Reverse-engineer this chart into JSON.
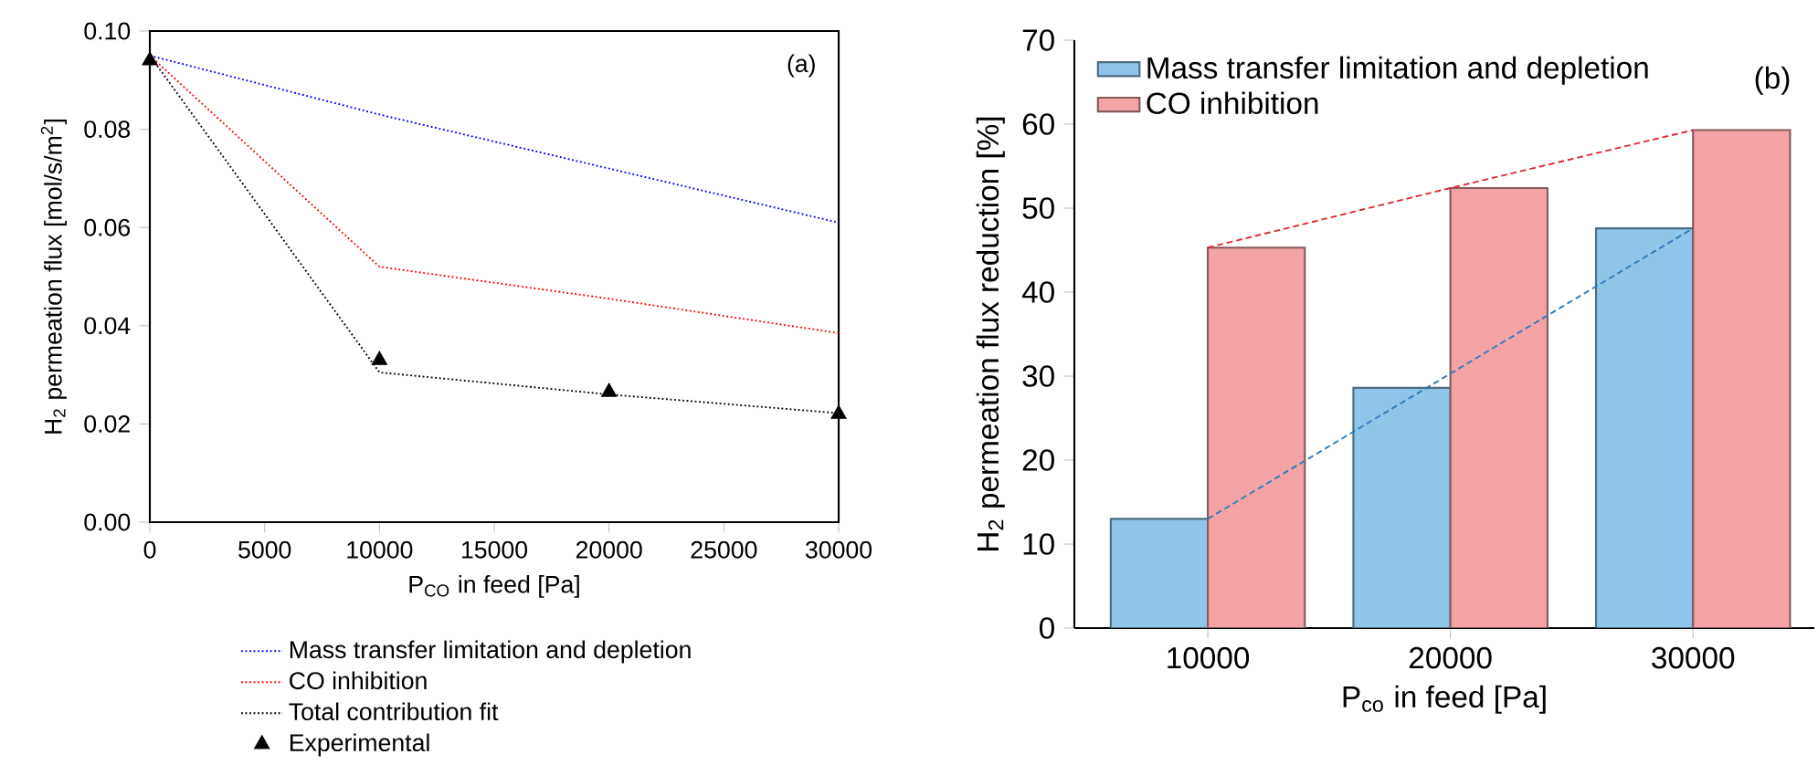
{
  "chart_data": [
    {
      "type": "line",
      "xlabel": "P$_{CO}$ in feed [Pa]",
      "ylabel": "H$_{2}$ permeation flux [mol/s/m$^{2}$]",
      "annotations": [
        "(a)"
      ],
      "x": [
        0,
        10000,
        20000,
        30000
      ],
      "series": [
        {
          "name": "Mass transfer limitation and depletion",
          "color": "#0000ff",
          "values": [
            0.095,
            0.083,
            0.072,
            0.061
          ],
          "line_style": "dotted"
        },
        {
          "name": "CO inhibition",
          "color": "#ff0000",
          "values": [
            0.095,
            0.052,
            0.0455,
            0.0385
          ],
          "line_style": "dotted"
        },
        {
          "name": "Total contribution fit",
          "color": "#000000",
          "values": [
            0.095,
            0.0305,
            0.026,
            0.0222
          ],
          "line_style": "dotted"
        },
        {
          "name": "Experimental",
          "type": "scatter",
          "marker": "triangle",
          "color": "#000000",
          "values": [
            0.094,
            0.033,
            0.0265,
            0.022
          ]
        }
      ],
      "xlim": [
        0,
        30000
      ],
      "ylim": [
        0,
        0.1
      ],
      "xticks": [
        0,
        5000,
        10000,
        15000,
        20000,
        25000,
        30000
      ],
      "yticks": [
        {
          "value": 0,
          "label": "0.00"
        },
        {
          "value": 0.02,
          "label": "0.02"
        },
        {
          "value": 0.04,
          "label": "0.04"
        },
        {
          "value": 0.06,
          "label": "0.06"
        },
        {
          "value": 0.08,
          "label": "0.08"
        },
        {
          "value": 0.1,
          "label": "0.10"
        }
      ],
      "legend": "bottom"
    },
    {
      "type": "bar",
      "xlabel": "P$_{co}$ in feed [Pa]",
      "ylabel": "H$_{2}$ permeation flux reduction [%]",
      "annotations": [
        "(b)"
      ],
      "categories": [
        "10000",
        "20000",
        "30000"
      ],
      "series": [
        {
          "name": "Mass transfer limitation and depletion",
          "color": "#8ec5e8",
          "values": [
            13,
            28.6,
            47.6
          ]
        },
        {
          "name": "CO inhibition",
          "color": "#f4a3a6",
          "values": [
            45.3,
            52.4,
            59.3
          ]
        },
        {
          "type": "line",
          "color": "#2b7bbf",
          "values": [
            13,
            30.3,
            47.6
          ],
          "line_style": "dashed"
        },
        {
          "type": "line",
          "color": "#e0282e",
          "values": [
            45.3,
            52.4,
            59.3
          ],
          "line_style": "dashed"
        }
      ],
      "ylim": [
        0,
        70
      ],
      "yticks": [
        0,
        10,
        20,
        30,
        40,
        50,
        60,
        70
      ],
      "legend": "top left"
    }
  ]
}
